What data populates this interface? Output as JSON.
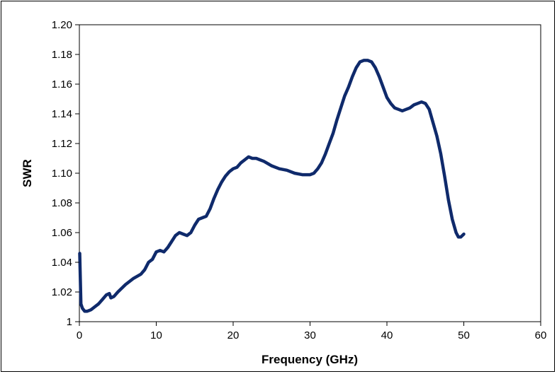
{
  "chart_data": {
    "type": "line",
    "title": "",
    "xlabel": "Frequency (GHz)",
    "ylabel": "SWR",
    "xlim": [
      0,
      60
    ],
    "ylim": [
      1.0,
      1.2
    ],
    "grid": false,
    "legend": "none",
    "x_ticks": [
      0,
      10,
      20,
      30,
      40,
      50,
      60
    ],
    "x_tick_labels": [
      "0",
      "10",
      "20",
      "30",
      "40",
      "50",
      "60"
    ],
    "y_ticks": [
      1.0,
      1.02,
      1.04,
      1.06,
      1.08,
      1.1,
      1.12,
      1.14,
      1.16,
      1.18,
      1.2
    ],
    "y_tick_labels": [
      "1",
      "1.02",
      "1.04",
      "1.06",
      "1.08",
      "1.10",
      "1.12",
      "1.14",
      "1.16",
      "1.18",
      "1.20"
    ],
    "line_color": "#0f2a6b",
    "series": [
      {
        "x": [
          0.05,
          0.2,
          0.4,
          0.7,
          1.0,
          1.5,
          2.0,
          2.5,
          3.0,
          3.5,
          3.9,
          4.1,
          4.5,
          5.0,
          6.0,
          7.0,
          8.0,
          8.5,
          9.0,
          9.5,
          10.0,
          10.5,
          11.0,
          11.5,
          12.0,
          12.5,
          13.0,
          13.5,
          14.0,
          14.5,
          15.0,
          15.5,
          16.0,
          16.5,
          17.0,
          17.5,
          18.0,
          18.5,
          19.0,
          19.5,
          20.0,
          20.5,
          21.0,
          21.5,
          22.0,
          22.5,
          23.0,
          23.5,
          24.0,
          25.0,
          26.0,
          27.0,
          28.0,
          29.0,
          29.5,
          30.0,
          30.5,
          31.0,
          31.5,
          32.0,
          32.5,
          33.0,
          33.5,
          34.0,
          34.5,
          35.0,
          35.5,
          36.0,
          36.5,
          37.0,
          37.5,
          38.0,
          38.5,
          39.0,
          39.5,
          40.0,
          40.5,
          41.0,
          41.5,
          42.0,
          42.5,
          43.0,
          43.5,
          44.0,
          44.5,
          45.0,
          45.5,
          46.0,
          46.5,
          47.0,
          47.5,
          48.0,
          48.5,
          49.0,
          49.3,
          49.6,
          50.0
        ],
        "y": [
          1.046,
          1.012,
          1.009,
          1.007,
          1.007,
          1.008,
          1.01,
          1.012,
          1.015,
          1.018,
          1.019,
          1.016,
          1.017,
          1.02,
          1.025,
          1.029,
          1.032,
          1.035,
          1.04,
          1.042,
          1.047,
          1.048,
          1.047,
          1.05,
          1.054,
          1.058,
          1.06,
          1.059,
          1.058,
          1.06,
          1.065,
          1.069,
          1.07,
          1.071,
          1.076,
          1.083,
          1.089,
          1.094,
          1.098,
          1.101,
          1.103,
          1.104,
          1.107,
          1.109,
          1.111,
          1.11,
          1.11,
          1.109,
          1.108,
          1.105,
          1.103,
          1.102,
          1.1,
          1.099,
          1.099,
          1.099,
          1.1,
          1.103,
          1.107,
          1.113,
          1.12,
          1.127,
          1.136,
          1.144,
          1.152,
          1.158,
          1.165,
          1.171,
          1.175,
          1.176,
          1.176,
          1.175,
          1.171,
          1.165,
          1.158,
          1.151,
          1.147,
          1.144,
          1.143,
          1.142,
          1.143,
          1.144,
          1.146,
          1.147,
          1.148,
          1.147,
          1.143,
          1.134,
          1.125,
          1.113,
          1.098,
          1.082,
          1.069,
          1.06,
          1.057,
          1.057,
          1.059
        ]
      }
    ]
  }
}
